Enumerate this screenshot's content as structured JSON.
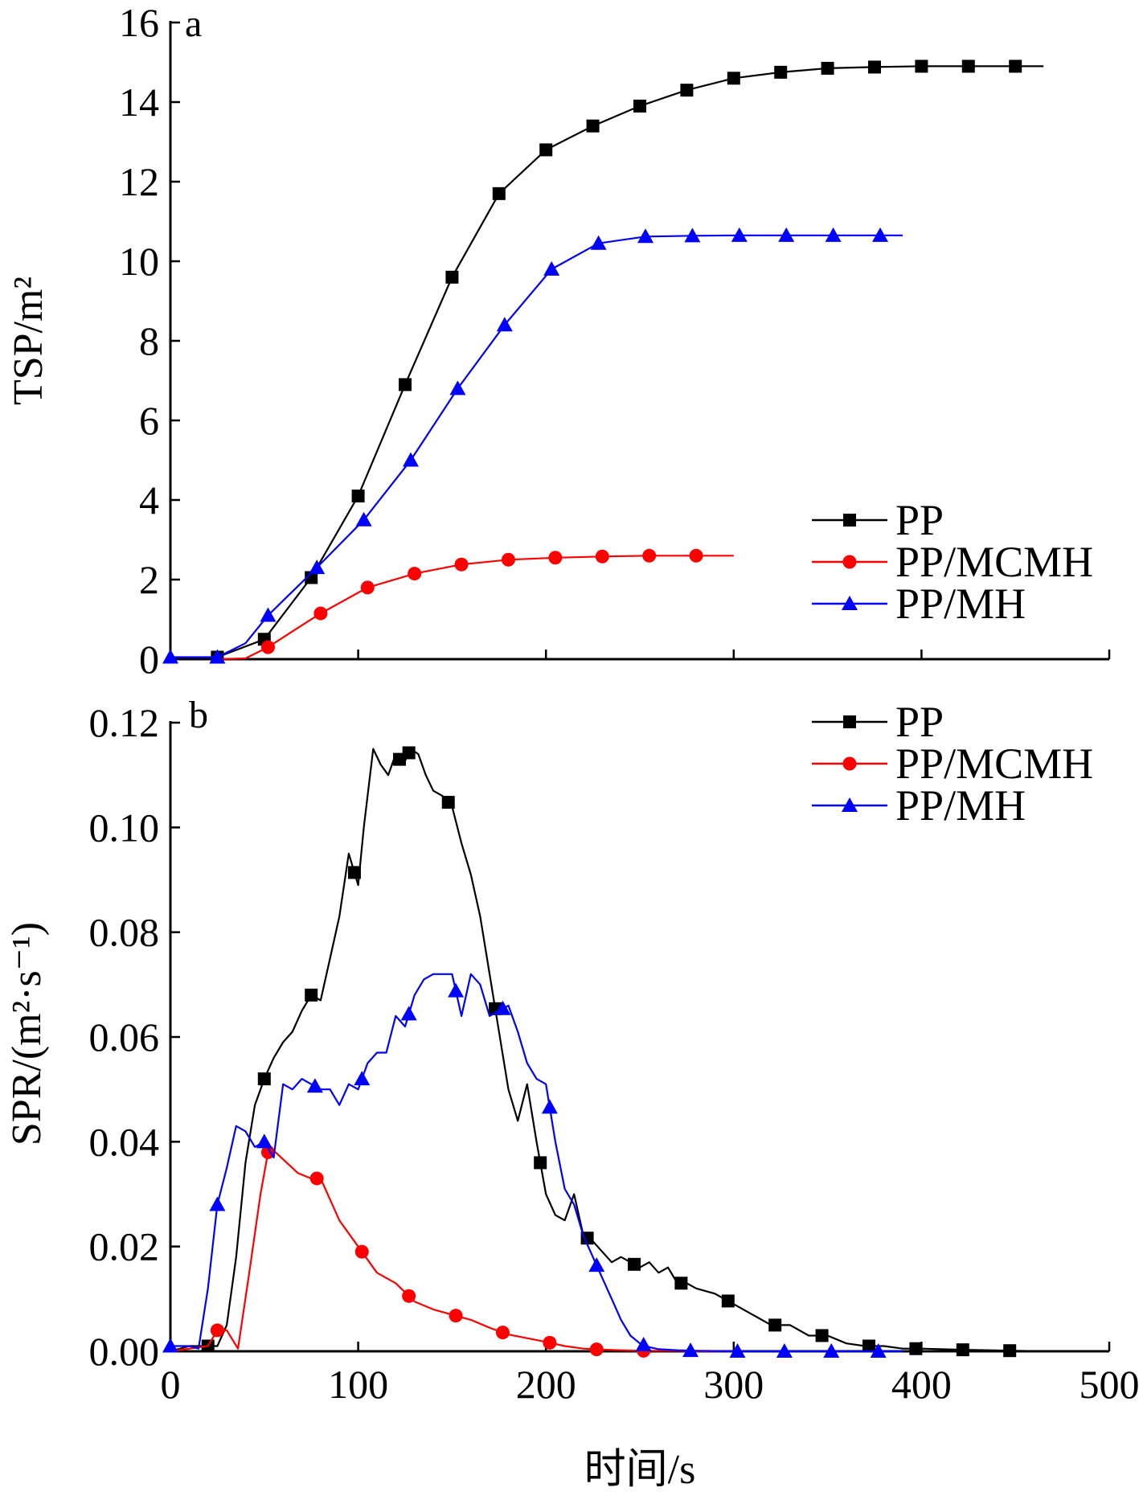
{
  "chart_data": [
    {
      "type": "line",
      "panel_label": "a",
      "ylabel": "TSP/m²",
      "ylim": [
        0,
        16
      ],
      "yticks": [
        0,
        2,
        4,
        6,
        8,
        10,
        12,
        14,
        16
      ],
      "ytick_labels": [
        "0",
        "2",
        "4",
        "6",
        "8",
        "10",
        "12",
        "14",
        "16"
      ],
      "xlim": [
        0,
        500
      ],
      "xticks": [
        0,
        100,
        200,
        300,
        400,
        500
      ],
      "grid": false,
      "legend_position": "lower-right",
      "series": [
        {
          "name": "PP",
          "color": "#000000",
          "marker": "square",
          "x": [
            0,
            25,
            50,
            75,
            100,
            125,
            150,
            175,
            200,
            225,
            250,
            275,
            300,
            325,
            350,
            375,
            400,
            425,
            450,
            465
          ],
          "y": [
            0,
            0.05,
            0.5,
            2.05,
            4.1,
            6.9,
            9.6,
            11.7,
            12.8,
            13.4,
            13.9,
            14.3,
            14.6,
            14.75,
            14.85,
            14.88,
            14.9,
            14.9,
            14.9,
            14.9
          ],
          "markers_x": [
            25,
            50,
            75,
            100,
            125,
            150,
            175,
            200,
            225,
            250,
            275,
            300,
            325,
            350,
            375,
            400,
            425,
            450
          ]
        },
        {
          "name": "PP/MCMH",
          "color": "#ff0000",
          "marker": "circle",
          "x": [
            25,
            40,
            52,
            65,
            80,
            105,
            130,
            155,
            180,
            205,
            230,
            255,
            280,
            300
          ],
          "y": [
            0,
            0.02,
            0.3,
            0.7,
            1.15,
            1.8,
            2.15,
            2.38,
            2.5,
            2.55,
            2.58,
            2.6,
            2.6,
            2.6
          ],
          "markers_x": [
            52,
            80,
            105,
            130,
            155,
            180,
            205,
            230,
            255,
            280
          ]
        },
        {
          "name": "PP/MH",
          "color": "#0000ff",
          "marker": "triangle",
          "x": [
            0,
            25,
            40,
            52,
            78,
            103,
            128,
            153,
            178,
            203,
            228,
            253,
            278,
            303,
            328,
            353,
            378,
            390
          ],
          "y": [
            0.05,
            0.05,
            0.4,
            1.1,
            2.3,
            3.5,
            5.0,
            6.8,
            8.4,
            9.8,
            10.45,
            10.62,
            10.64,
            10.65,
            10.65,
            10.65,
            10.65,
            10.65
          ],
          "markers_x": [
            0,
            25,
            52,
            78,
            103,
            128,
            153,
            178,
            203,
            228,
            253,
            278,
            303,
            328,
            353,
            378
          ]
        }
      ]
    },
    {
      "type": "line",
      "panel_label": "b",
      "ylabel": "SPR/(m²·s⁻¹)",
      "xlabel": "时间/s",
      "ylim": [
        0,
        0.12
      ],
      "yticks": [
        0,
        0.02,
        0.04,
        0.06,
        0.08,
        0.1,
        0.12
      ],
      "ytick_labels": [
        "0.00",
        "0.02",
        "0.04",
        "0.06",
        "0.08",
        "0.10",
        "0.12"
      ],
      "xlim": [
        0,
        500
      ],
      "xticks": [
        0,
        100,
        200,
        300,
        400,
        500
      ],
      "xtick_labels": [
        "0",
        "100",
        "200",
        "300",
        "400",
        "500"
      ],
      "grid": false,
      "legend_position": "top-right",
      "series": [
        {
          "name": "PP",
          "color": "#000000",
          "marker": "square",
          "x": [
            0,
            10,
            20,
            25,
            30,
            35,
            40,
            45,
            50,
            55,
            60,
            65,
            70,
            75,
            80,
            85,
            90,
            95,
            100,
            103,
            108,
            112,
            116,
            120,
            124,
            128,
            132,
            136,
            140,
            145,
            150,
            155,
            160,
            165,
            170,
            175,
            180,
            185,
            190,
            195,
            200,
            205,
            210,
            215,
            220,
            225,
            230,
            235,
            240,
            245,
            250,
            255,
            260,
            265,
            270,
            275,
            280,
            290,
            300,
            310,
            320,
            330,
            340,
            350,
            360,
            370,
            380,
            390,
            400,
            420,
            450,
            465
          ],
          "y": [
            0,
            0.001,
            0.001,
            0.001,
            0.005,
            0.018,
            0.036,
            0.047,
            0.052,
            0.056,
            0.059,
            0.061,
            0.065,
            0.068,
            0.067,
            0.075,
            0.083,
            0.095,
            0.089,
            0.1,
            0.115,
            0.112,
            0.11,
            0.114,
            0.112,
            0.115,
            0.114,
            0.11,
            0.107,
            0.106,
            0.104,
            0.097,
            0.091,
            0.083,
            0.072,
            0.061,
            0.05,
            0.044,
            0.051,
            0.04,
            0.03,
            0.026,
            0.025,
            0.03,
            0.022,
            0.021,
            0.019,
            0.017,
            0.018,
            0.017,
            0.016,
            0.017,
            0.015,
            0.016,
            0.013,
            0.013,
            0.012,
            0.011,
            0.009,
            0.007,
            0.005,
            0.005,
            0.003,
            0.003,
            0.0015,
            0.001,
            0.001,
            0.0005,
            0.0005,
            0.0003,
            0.0001,
            0
          ],
          "markers_x": [
            20,
            50,
            75,
            98,
            122,
            127,
            148,
            173,
            197,
            222,
            247,
            272,
            297,
            322,
            347,
            372,
            397,
            422,
            447
          ]
        },
        {
          "name": "PP/MCMH",
          "color": "#ff0000",
          "marker": "circle",
          "x": [
            0,
            20,
            25,
            30,
            36,
            42,
            48,
            52,
            56,
            62,
            68,
            75,
            80,
            90,
            100,
            110,
            120,
            130,
            140,
            150,
            160,
            170,
            180,
            190,
            200,
            210,
            220,
            230,
            240,
            250,
            260,
            270,
            280,
            300
          ],
          "y": [
            0,
            0.001,
            0.004,
            0.004,
            0.0005,
            0.015,
            0.03,
            0.038,
            0.038,
            0.036,
            0.034,
            0.033,
            0.033,
            0.025,
            0.02,
            0.015,
            0.013,
            0.0095,
            0.008,
            0.007,
            0.006,
            0.0045,
            0.0032,
            0.0025,
            0.0018,
            0.001,
            0.0005,
            0.0003,
            0.0002,
            0.0001,
            0.0001,
            0.0001,
            0,
            0
          ],
          "markers_x": [
            25,
            52,
            78,
            102,
            127,
            152,
            177,
            202,
            227,
            252
          ]
        },
        {
          "name": "PP/MH",
          "color": "#0000ff",
          "marker": "triangle",
          "x": [
            0,
            10,
            15,
            20,
            25,
            30,
            35,
            40,
            45,
            50,
            55,
            60,
            65,
            70,
            75,
            80,
            85,
            90,
            95,
            100,
            105,
            110,
            115,
            120,
            125,
            130,
            135,
            140,
            145,
            150,
            155,
            160,
            165,
            170,
            175,
            180,
            185,
            190,
            195,
            200,
            205,
            210,
            215,
            220,
            225,
            230,
            235,
            240,
            245,
            250,
            255,
            260,
            270,
            280,
            300,
            330,
            350,
            380,
            390
          ],
          "y": [
            0.001,
            0.001,
            0.0005,
            0.012,
            0.028,
            0.035,
            0.043,
            0.042,
            0.039,
            0.04,
            0.037,
            0.051,
            0.05,
            0.052,
            0.051,
            0.05,
            0.05,
            0.047,
            0.051,
            0.05,
            0.055,
            0.057,
            0.057,
            0.064,
            0.062,
            0.068,
            0.071,
            0.072,
            0.072,
            0.072,
            0.064,
            0.072,
            0.07,
            0.064,
            0.065,
            0.066,
            0.061,
            0.055,
            0.052,
            0.051,
            0.04,
            0.031,
            0.028,
            0.022,
            0.018,
            0.014,
            0.01,
            0.006,
            0.003,
            0.0015,
            0.0008,
            0.0004,
            0.0002,
            0.0001,
            0,
            0,
            0,
            0,
            0
          ],
          "markers_x": [
            0,
            25,
            50,
            77,
            102,
            127,
            152,
            177,
            202,
            227,
            252,
            277,
            302,
            327,
            352,
            377
          ]
        }
      ]
    }
  ]
}
